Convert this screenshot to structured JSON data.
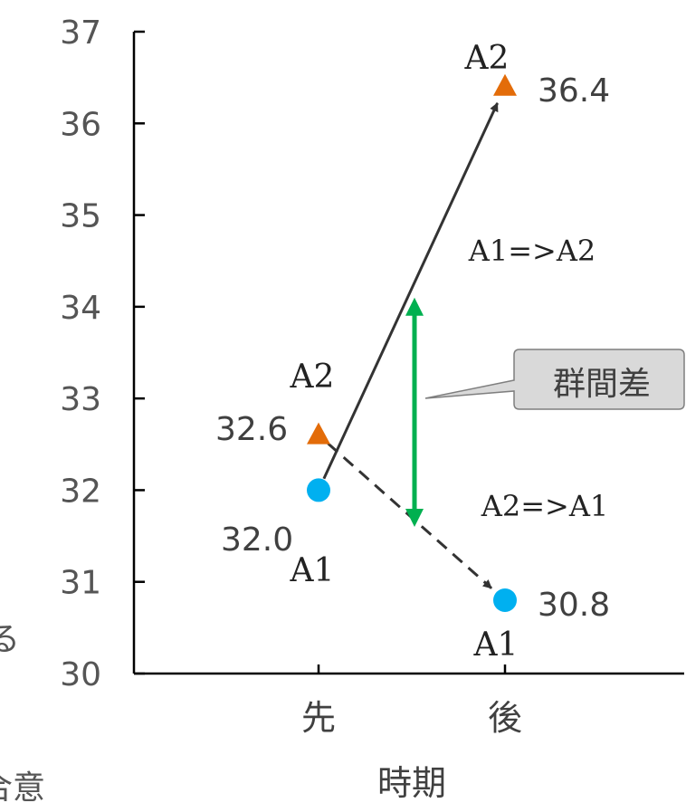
{
  "chart_data": {
    "type": "scatter",
    "xlabel": "時期",
    "categories": [
      "先",
      "後"
    ],
    "ylim": [
      30,
      37
    ],
    "yticks": [
      30,
      31,
      32,
      33,
      34,
      35,
      36,
      37
    ],
    "series": [
      {
        "name": "A1",
        "marker": "circle",
        "color": "#00b0f0",
        "values": [
          32.0,
          30.8
        ]
      },
      {
        "name": "A2",
        "marker": "triangle",
        "color": "#e36c09",
        "values": [
          32.6,
          36.4
        ]
      }
    ],
    "data_labels": {
      "a1_before": "32.0",
      "a1_after": "30.8",
      "a2_before": "32.6",
      "a2_after": "36.4"
    },
    "arrows": [
      {
        "label": "A1=>A2",
        "from": [
          "先",
          32.0
        ],
        "to": [
          "後",
          36.4
        ],
        "style": "solid"
      },
      {
        "label": "A2=>A1",
        "from": [
          "先",
          32.6
        ],
        "to": [
          "後",
          30.8
        ],
        "style": "dashed"
      }
    ],
    "group_diff": {
      "label": "群間差",
      "from": 31.6,
      "to": 34.1,
      "color": "#00b050"
    },
    "left_edge_fragments": [
      "る",
      "合意"
    ]
  }
}
